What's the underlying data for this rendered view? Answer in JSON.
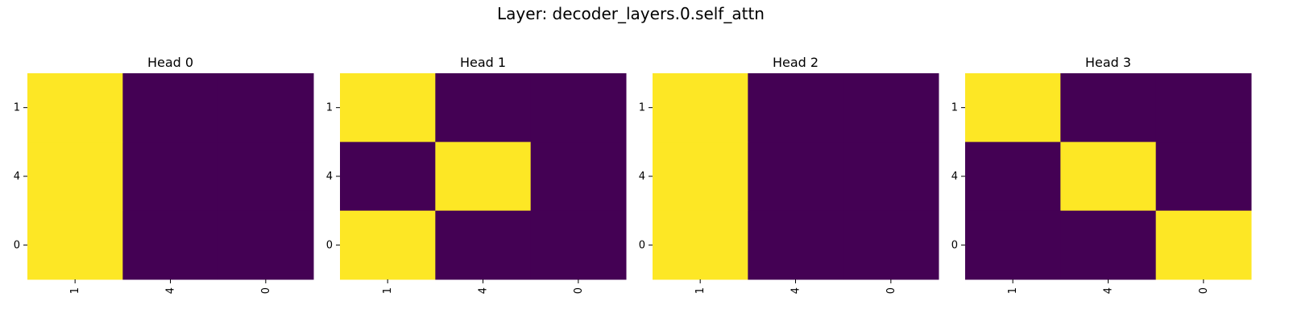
{
  "figure": {
    "title": "Layer: decoder_layers.0.self_attn"
  },
  "colors": {
    "low": "#440154",
    "high": "#fde725"
  },
  "chart_data": [
    {
      "type": "heatmap",
      "title": "Head 0",
      "x_labels": [
        "1",
        "4",
        "0"
      ],
      "y_labels": [
        "1",
        "4",
        "0"
      ],
      "values": [
        [
          1,
          0,
          0
        ],
        [
          1,
          0,
          0
        ],
        [
          1,
          0,
          0
        ]
      ],
      "value_range": [
        0,
        1
      ],
      "colormap": "viridis",
      "colorbar": false
    },
    {
      "type": "heatmap",
      "title": "Head 1",
      "x_labels": [
        "1",
        "4",
        "0"
      ],
      "y_labels": [
        "1",
        "4",
        "0"
      ],
      "values": [
        [
          1,
          0,
          0
        ],
        [
          0,
          1,
          0
        ],
        [
          1,
          0,
          0
        ]
      ],
      "value_range": [
        0,
        1
      ],
      "colormap": "viridis",
      "colorbar": false
    },
    {
      "type": "heatmap",
      "title": "Head 2",
      "x_labels": [
        "1",
        "4",
        "0"
      ],
      "y_labels": [
        "1",
        "4",
        "0"
      ],
      "values": [
        [
          1,
          0,
          0
        ],
        [
          1,
          0,
          0
        ],
        [
          1,
          0,
          0
        ]
      ],
      "value_range": [
        0,
        1
      ],
      "colormap": "viridis",
      "colorbar": false
    },
    {
      "type": "heatmap",
      "title": "Head 3",
      "x_labels": [
        "1",
        "4",
        "0"
      ],
      "y_labels": [
        "1",
        "4",
        "0"
      ],
      "values": [
        [
          1,
          0,
          0
        ],
        [
          0,
          1,
          0
        ],
        [
          0,
          0,
          1
        ]
      ],
      "value_range": [
        0,
        1
      ],
      "colormap": "viridis",
      "colorbar": false
    }
  ]
}
